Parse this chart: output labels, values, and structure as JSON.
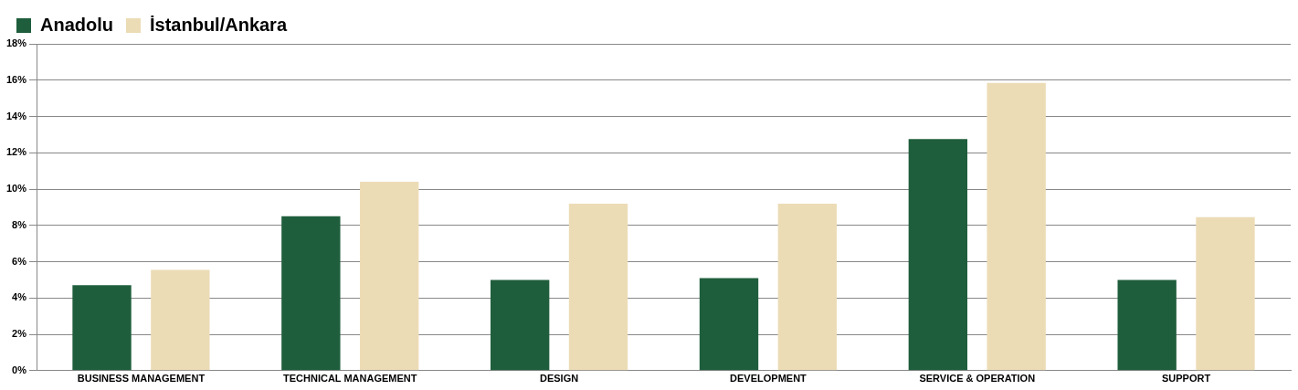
{
  "chart_data": {
    "type": "bar",
    "categories": [
      "BUSINESS MANAGEMENT",
      "TECHNICAL MANAGEMENT",
      "DESIGN",
      "DEVELOPMENT",
      "SERVICE & OPERATION",
      "SUPPORT"
    ],
    "series": [
      {
        "name": "Anadolu",
        "color": "#1f5e3c",
        "values": [
          4.7,
          8.5,
          5.0,
          5.1,
          12.75,
          5.0
        ]
      },
      {
        "name": "İstanbul/Ankara",
        "color": "#ecdcb6",
        "values": [
          5.55,
          10.4,
          9.2,
          9.2,
          15.85,
          8.45
        ]
      }
    ],
    "ylim": [
      0,
      18
    ],
    "yticks": [
      {
        "value": 0,
        "label": "0%"
      },
      {
        "value": 2,
        "label": "2%"
      },
      {
        "value": 4,
        "label": "4%"
      },
      {
        "value": 6,
        "label": "6%"
      },
      {
        "value": 8,
        "label": "8%"
      },
      {
        "value": 10,
        "label": "10%"
      },
      {
        "value": 12,
        "label": "12%"
      },
      {
        "value": 14,
        "label": "14%"
      },
      {
        "value": 16,
        "label": "16%"
      },
      {
        "value": 18,
        "label": "18%"
      }
    ],
    "grid": "y",
    "legend": "top left"
  }
}
